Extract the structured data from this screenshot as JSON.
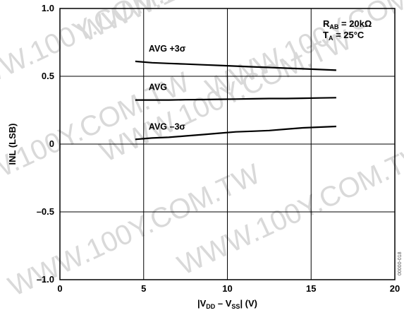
{
  "watermark": "WWW.100Y.COM.TW",
  "figure_code": "00000-018",
  "chart_data": {
    "type": "line",
    "xlabel_parts": [
      "|V",
      "DD",
      " – V",
      "SS",
      "| (V)"
    ],
    "ylabel": "INL (LSB)",
    "xlim": [
      0,
      20
    ],
    "ylim": [
      -1.0,
      1.0
    ],
    "x_ticks": [
      0,
      5,
      10,
      15,
      20
    ],
    "x_tick_labels": [
      "0",
      "5",
      "10",
      "15",
      "20"
    ],
    "y_ticks": [
      1.0,
      0.5,
      0,
      -0.5,
      -1.0
    ],
    "y_tick_labels": [
      "1.0",
      "0.5",
      "0",
      "–0.5",
      "–1.0"
    ],
    "grid": true,
    "conditions": [
      {
        "main": "R",
        "sub": "AB",
        "rest": " = 20kΩ"
      },
      {
        "main": "T",
        "sub": "A",
        "rest": " = 25°C"
      }
    ],
    "series": [
      {
        "name": "AVG +3σ",
        "color": "#000000",
        "x": [
          4.5,
          5.5,
          6.5,
          7.5,
          8.5,
          9.5,
          10.5,
          11.5,
          12.5,
          13.5,
          14.5,
          15.5,
          16.5
        ],
        "y": [
          0.61,
          0.6,
          0.595,
          0.59,
          0.585,
          0.58,
          0.575,
          0.57,
          0.565,
          0.56,
          0.555,
          0.55,
          0.545
        ]
      },
      {
        "name": "AVG",
        "color": "#000000",
        "x": [
          4.5,
          5.5,
          6.5,
          7.5,
          8.5,
          9.5,
          10.5,
          11.5,
          12.5,
          13.5,
          14.5,
          15.5,
          16.5
        ],
        "y": [
          0.325,
          0.325,
          0.325,
          0.327,
          0.328,
          0.33,
          0.332,
          0.334,
          0.336,
          0.336,
          0.338,
          0.34,
          0.342
        ]
      },
      {
        "name": "AVG –3σ",
        "color": "#000000",
        "x": [
          4.5,
          5.5,
          6.5,
          7.5,
          8.5,
          9.5,
          10.5,
          11.5,
          12.5,
          13.5,
          14.5,
          15.5,
          16.5
        ],
        "y": [
          0.035,
          0.045,
          0.05,
          0.06,
          0.07,
          0.08,
          0.09,
          0.095,
          0.1,
          0.11,
          0.12,
          0.125,
          0.13
        ]
      }
    ]
  }
}
